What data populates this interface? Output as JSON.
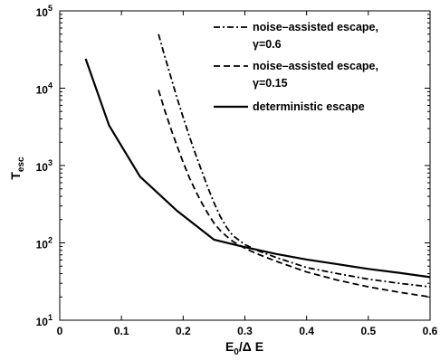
{
  "chart_data": {
    "type": "line",
    "xlabel_main": "E",
    "xlabel_sub": "0",
    "xlabel_rest": "/Δ E",
    "ylabel_main": "T",
    "ylabel_sub": "esc",
    "xlim": [
      0,
      0.6
    ],
    "ylim": [
      10,
      100000
    ],
    "yscale": "log",
    "grid": false,
    "legend_placement": "top-right",
    "x_ticks": [
      "0",
      "0.1",
      "0.2",
      "0.3",
      "0.4",
      "0.5",
      "0.6"
    ],
    "x_tick_values": [
      0,
      0.1,
      0.2,
      0.3,
      0.4,
      0.5,
      0.6
    ],
    "y_tick_values": [
      10,
      100,
      1000,
      10000,
      100000
    ],
    "y_tick_base": "10",
    "y_tick_exps": [
      "1",
      "2",
      "3",
      "4",
      "5"
    ],
    "series": [
      {
        "name_line1": "noise–assisted escape,",
        "name_line2": "γ=0.6",
        "style": "dashdot",
        "x": [
          0.16,
          0.17,
          0.18,
          0.19,
          0.2,
          0.21,
          0.22,
          0.23,
          0.24,
          0.25,
          0.26,
          0.27,
          0.28,
          0.3,
          0.32,
          0.35,
          0.4,
          0.45,
          0.5,
          0.55,
          0.6
        ],
        "y": [
          50000,
          26000,
          14000,
          7500,
          4200,
          2400,
          1400,
          850,
          520,
          330,
          220,
          160,
          125,
          95,
          80,
          65,
          48,
          40,
          34,
          30,
          27
        ]
      },
      {
        "name_line1": "noise–assisted escape,",
        "name_line2": "γ=0.15",
        "style": "dashed",
        "x": [
          0.16,
          0.17,
          0.18,
          0.19,
          0.2,
          0.21,
          0.22,
          0.23,
          0.24,
          0.25,
          0.26,
          0.27,
          0.28,
          0.3,
          0.32,
          0.35,
          0.4,
          0.45,
          0.5,
          0.55,
          0.6
        ],
        "y": [
          9500,
          5200,
          3000,
          1800,
          1100,
          700,
          470,
          330,
          240,
          180,
          145,
          122,
          105,
          85,
          72,
          58,
          42,
          33,
          27,
          23,
          20
        ]
      },
      {
        "name_line1": "deterministic escape",
        "name_line2": "",
        "style": "solid",
        "x": [
          0.042,
          0.08,
          0.13,
          0.19,
          0.25,
          0.3,
          0.35,
          0.4,
          0.45,
          0.5,
          0.55,
          0.6
        ],
        "y": [
          24000,
          3300,
          720,
          260,
          110,
          88,
          72,
          61,
          53,
          46,
          41,
          36
        ]
      }
    ]
  }
}
